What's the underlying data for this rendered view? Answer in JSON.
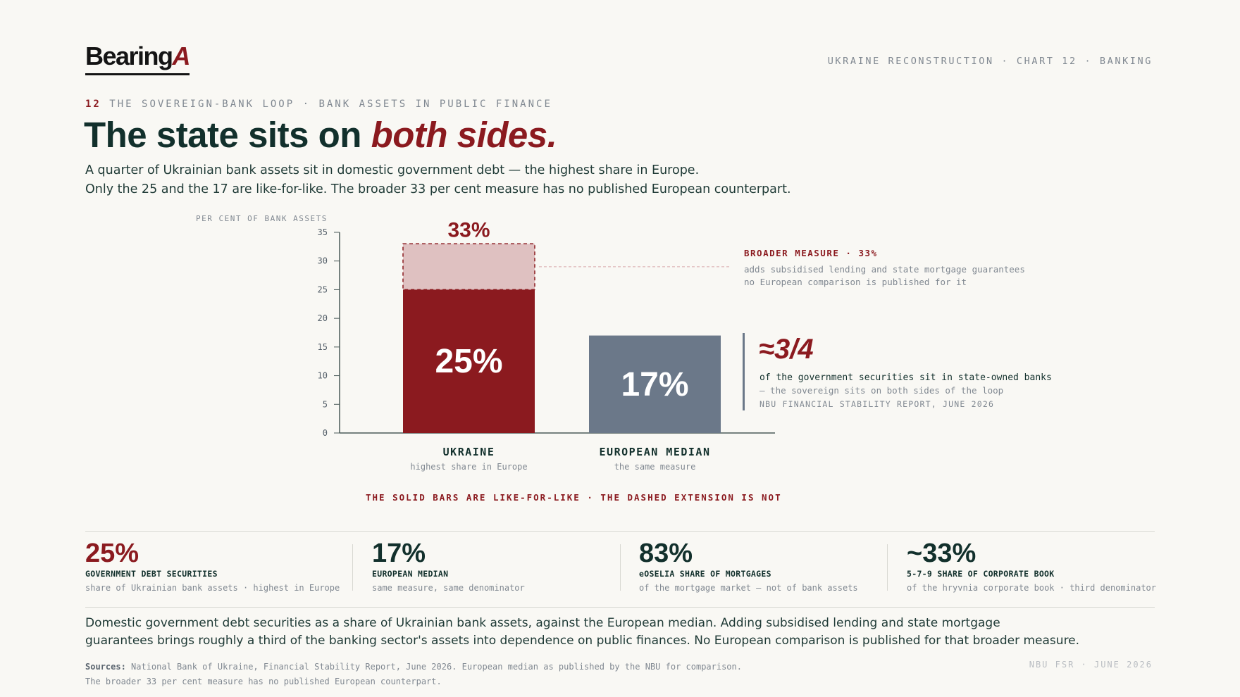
{
  "brand": {
    "logo_main": "Bearing",
    "logo_accent": "A"
  },
  "header": {
    "tag": "UKRAINE RECONSTRUCTION · CHART 12 · BANKING"
  },
  "kicker": {
    "num": "12",
    "text": "THE SOVEREIGN-BANK LOOP · BANK ASSETS IN PUBLIC FINANCE"
  },
  "title": {
    "main": "The state sits on ",
    "emphasis": "both sides."
  },
  "subtitle": {
    "line1": "A quarter of Ukrainian bank assets sit in domestic government debt — the highest share in Europe.",
    "line2": "Only the 25 and the 17 are like-for-like. The broader 33 per cent measure has no published European counterpart."
  },
  "colors": {
    "accent": "#8b1a1f",
    "accent_light": "#dfc1c1",
    "slate": "#6b7889",
    "ink": "#12302c",
    "muted": "#808891"
  },
  "chart_data": {
    "type": "bar",
    "ylabel": "PER CENT OF BANK ASSETS",
    "ylim": [
      0,
      35
    ],
    "yticks": [
      0,
      5,
      10,
      15,
      20,
      25,
      30,
      35
    ],
    "categories": [
      "UKRAINE",
      "EUROPEAN MEDIAN"
    ],
    "category_subs": [
      "highest share in Europe",
      "the same measure"
    ],
    "values": [
      25,
      17
    ],
    "value_labels": [
      "25%",
      "17%"
    ],
    "extension": {
      "category": "UKRAINE",
      "from": 25,
      "to": 33,
      "label": "33%"
    },
    "grid": false
  },
  "annotations": {
    "broader_head": "BROADER MEASURE · 33%",
    "broader_l1": "adds subsidised lending and state mortgage guarantees",
    "broader_l2": "no European comparison is published for it",
    "big": "≈3/4",
    "big_t1": "of the government securities sit in state-owned banks",
    "big_t2": "— the sovereign sits on both sides of the loop",
    "big_t3": "NBU FINANCIAL STABILITY REPORT, JUNE 2026"
  },
  "chart_note": "THE SOLID BARS ARE LIKE-FOR-LIKE · THE DASHED EXTENSION IS NOT",
  "stats": [
    {
      "value": "25%",
      "label": "GOVERNMENT DEBT SECURITIES",
      "desc": "share of Ukrainian bank assets · highest in Europe"
    },
    {
      "value": "17%",
      "label": "EUROPEAN MEDIAN",
      "desc": "same measure, same denominator"
    },
    {
      "value": "83%",
      "label": "eOSELIA SHARE OF MORTGAGES",
      "desc": "of the mortgage market — not of bank assets"
    },
    {
      "value": "~33%",
      "label": "5-7-9 SHARE OF CORPORATE BOOK",
      "desc": "of the hryvnia corporate book · third denominator"
    }
  ],
  "footer": {
    "line1": "Domestic government debt securities as a share of Ukrainian bank assets, against the European median. Adding subsidised lending and state mortgage",
    "line2": "guarantees brings roughly a third of the banking sector's assets into dependence on public finances. No European comparison is published for that broader measure."
  },
  "sources": {
    "label": "Sources:",
    "line1": "National Bank of Ukraine, Financial Stability Report, June 2026. European median as published by the NBU for comparison.",
    "line2": "The broader 33 per cent measure has no published European counterpart.",
    "right": "NBU FSR · JUNE 2026"
  }
}
